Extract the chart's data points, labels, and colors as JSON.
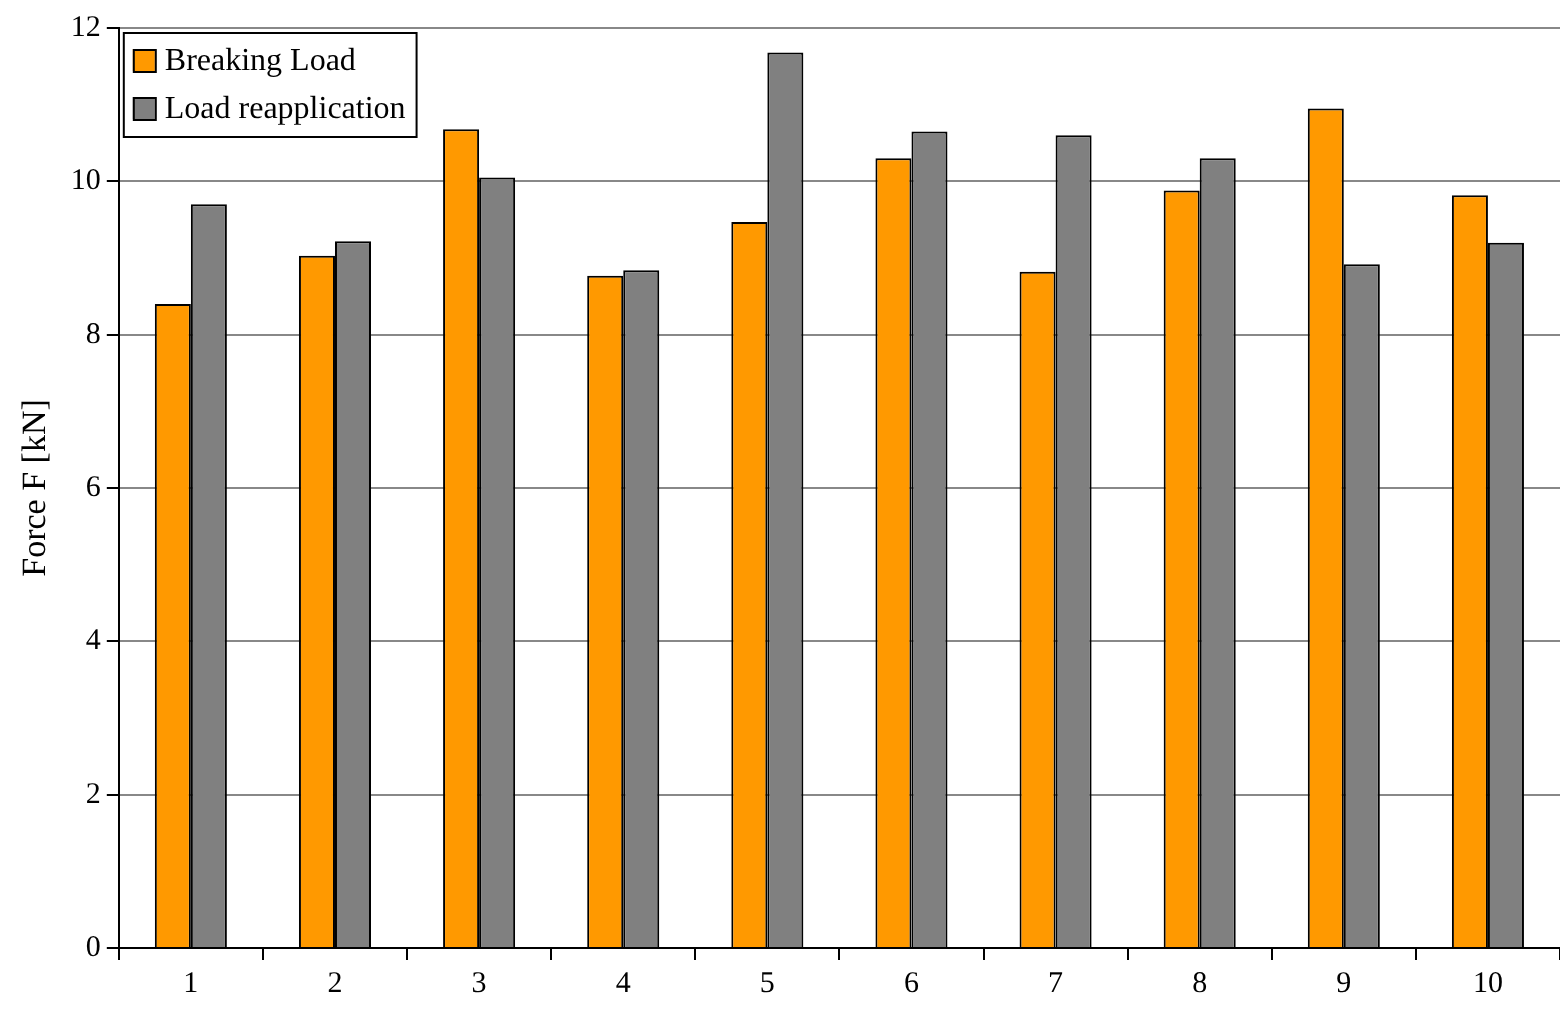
{
  "chart_data": {
    "type": "bar",
    "ylabel": "Force F [kN]",
    "categories": [
      "1",
      "2",
      "3",
      "4",
      "5",
      "6",
      "7",
      "8",
      "9",
      "10"
    ],
    "series": [
      {
        "name": "Breaking Load",
        "color": "#ff9900",
        "values": [
          8.4,
          9.03,
          10.68,
          8.77,
          9.47,
          10.3,
          8.82,
          9.88,
          10.95,
          9.82
        ]
      },
      {
        "name": "Load reapplication",
        "color": "#808080",
        "values": [
          9.7,
          9.22,
          10.05,
          8.84,
          11.68,
          10.65,
          10.6,
          10.3,
          8.92,
          9.2
        ]
      }
    ],
    "ylim": [
      0,
      12
    ],
    "yticks": [
      0,
      2,
      4,
      6,
      8,
      10,
      12
    ],
    "grid": "y",
    "legend": "top left"
  }
}
